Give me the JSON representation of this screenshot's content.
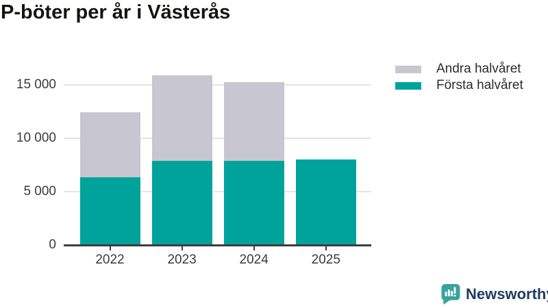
{
  "title": "P-böter per år i Västerås",
  "colors": {
    "first_half": "#00A39B",
    "second_half": "#C8C6D0",
    "axis": "#3D3D3D",
    "grid": "#E4E4E4",
    "tick_text": "#3A3A3A",
    "title_text": "#141410",
    "logo_teal": "#38A39C",
    "logo_text": "#1E3C5E"
  },
  "legend": {
    "position": "top-right",
    "items": [
      {
        "label": "Andra halvåret",
        "series_key": "second_half"
      },
      {
        "label": "Första halvåret",
        "series_key": "first_half"
      }
    ]
  },
  "branding": {
    "name": "Newsworthy"
  },
  "chart_data": {
    "type": "bar",
    "stacked": true,
    "title": "P-böter per år i Västerås",
    "xlabel": "",
    "ylabel": "",
    "categories": [
      "2022",
      "2023",
      "2024",
      "2025"
    ],
    "series": [
      {
        "name": "Första halvåret",
        "color_key": "first_half",
        "values": [
          6350,
          7900,
          7900,
          8000
        ]
      },
      {
        "name": "Andra halvåret",
        "color_key": "second_half",
        "values": [
          6100,
          8000,
          7350,
          0
        ]
      }
    ],
    "totals": [
      12450,
      15900,
      15250,
      8000
    ],
    "ylim": [
      0,
      16800
    ],
    "yticks": [
      {
        "label": "0",
        "value": 0
      },
      {
        "label": "5 000",
        "value": 5000
      },
      {
        "label": "10 000",
        "value": 10000
      },
      {
        "label": "15 000",
        "value": 15000
      }
    ],
    "grid": "horizontal",
    "legend_position": "top-right"
  }
}
